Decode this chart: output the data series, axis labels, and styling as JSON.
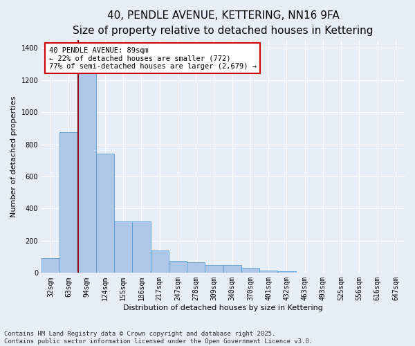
{
  "title": "40, PENDLE AVENUE, KETTERING, NN16 9FA",
  "subtitle": "Size of property relative to detached houses in Kettering",
  "xlabel": "Distribution of detached houses by size in Kettering",
  "ylabel": "Number of detached properties",
  "categories": [
    "32sqm",
    "63sqm",
    "94sqm",
    "124sqm",
    "155sqm",
    "186sqm",
    "217sqm",
    "247sqm",
    "278sqm",
    "309sqm",
    "340sqm",
    "370sqm",
    "401sqm",
    "432sqm",
    "463sqm",
    "493sqm",
    "525sqm",
    "556sqm",
    "616sqm",
    "647sqm"
  ],
  "values": [
    90,
    875,
    1240,
    740,
    320,
    320,
    140,
    75,
    65,
    50,
    50,
    30,
    15,
    8,
    0,
    0,
    0,
    0,
    0,
    0
  ],
  "bar_color": "#aec6e8",
  "bar_edgecolor": "#5a9fd4",
  "background_color": "#e8eef8",
  "grid_color": "#ffffff",
  "vline_color": "#8b0000",
  "annotation_text": "40 PENDLE AVENUE: 89sqm\n← 22% of detached houses are smaller (772)\n77% of semi-detached houses are larger (2,679) →",
  "annotation_box_edgecolor": "#cc0000",
  "annotation_box_facecolor": "white",
  "ylim": [
    0,
    1450
  ],
  "yticks": [
    0,
    200,
    400,
    600,
    800,
    1000,
    1200,
    1400
  ],
  "footer": "Contains HM Land Registry data © Crown copyright and database right 2025.\nContains public sector information licensed under the Open Government Licence v3.0.",
  "title_fontsize": 11,
  "subtitle_fontsize": 9,
  "tick_fontsize": 7,
  "ylabel_fontsize": 8,
  "xlabel_fontsize": 8,
  "annotation_fontsize": 7.5,
  "footer_fontsize": 6.5
}
